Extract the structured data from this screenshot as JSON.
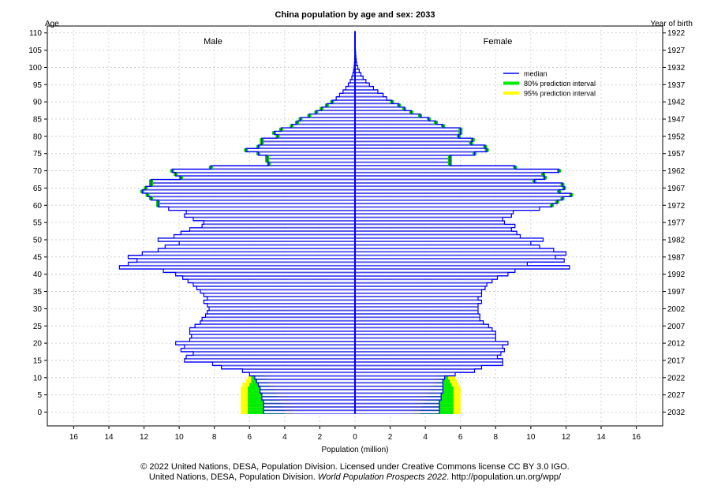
{
  "chart_data": {
    "type": "bar",
    "title": "China population by age and sex: 2033",
    "xlabel": "Population (million)",
    "ylabel_left": "Age",
    "ylabel_right": "Year of birth",
    "male_label": "Male",
    "female_label": "Female",
    "xlim": [
      -17.5,
      17.5
    ],
    "xticks": [
      -16,
      -14,
      -12,
      -10,
      -8,
      -6,
      -4,
      -2,
      0,
      2,
      4,
      6,
      8,
      10,
      12,
      14,
      16
    ],
    "xtick_labels": [
      "16",
      "14",
      "12",
      "10",
      "8",
      "6",
      "4",
      "2",
      "0",
      "2",
      "4",
      "6",
      "8",
      "10",
      "12",
      "14",
      "16"
    ],
    "ylim": [
      -4,
      112
    ],
    "age_ticks": [
      0,
      5,
      10,
      15,
      20,
      25,
      30,
      35,
      40,
      45,
      50,
      55,
      60,
      65,
      70,
      75,
      80,
      85,
      90,
      95,
      100,
      105,
      110
    ],
    "birth_year_labels": [
      "2032",
      "2027",
      "2022",
      "2017",
      "2012",
      "2007",
      "2002",
      "1997",
      "1992",
      "1987",
      "1982",
      "1977",
      "1972",
      "1967",
      "1962",
      "1957",
      "1952",
      "1947",
      "1942",
      "1937",
      "1932",
      "1927",
      "1922"
    ],
    "grid": true,
    "legend_position": "upper-right",
    "legend": [
      {
        "label": "median",
        "color": "#0000ff"
      },
      {
        "label": "80% prediction interval",
        "color": "#00ee00"
      },
      {
        "label": "95% prediction interval",
        "color": "#ffff00"
      }
    ],
    "series": [
      {
        "name": "Male",
        "values": [
          5.2,
          5.2,
          5.2,
          5.2,
          5.3,
          5.3,
          5.4,
          5.4,
          5.5,
          5.6,
          5.7,
          6.0,
          6.4,
          7.6,
          8.1,
          9.7,
          9.6,
          9.2,
          9.9,
          9.7,
          10.2,
          9.4,
          9.3,
          9.4,
          9.4,
          9.1,
          8.8,
          8.7,
          8.5,
          8.4,
          8.3,
          8.4,
          8.6,
          8.4,
          8.6,
          8.8,
          9.0,
          9.2,
          9.5,
          9.8,
          10.2,
          10.9,
          13.4,
          12.9,
          12.4,
          12.9,
          12.1,
          11.2,
          10.8,
          10.0,
          11.2,
          10.3,
          9.9,
          9.4,
          8.7,
          8.6,
          9.2,
          9.7,
          9.6,
          10.6,
          11.2,
          11.2,
          11.6,
          11.8,
          12.1,
          11.9,
          11.6,
          11.6,
          9.9,
          10.2,
          10.4,
          8.2,
          4.9,
          5.0,
          5.0,
          5.5,
          6.2,
          5.5,
          5.3,
          5.3,
          4.4,
          4.6,
          4.2,
          3.6,
          3.3,
          3.1,
          2.6,
          2.2,
          1.9,
          1.6,
          1.3,
          1.07,
          0.88,
          0.68,
          0.52,
          0.38,
          0.27,
          0.18,
          0.12,
          0.08,
          0.05,
          0.03,
          0.02,
          0.015,
          0.01,
          0.008,
          0.006,
          0.004,
          0.003,
          0.002,
          0.001
        ]
      },
      {
        "name": "Female",
        "values": [
          4.8,
          4.8,
          4.8,
          4.8,
          4.9,
          4.9,
          5.0,
          5.0,
          5.0,
          5.0,
          5.1,
          5.7,
          6.8,
          7.2,
          8.4,
          8.4,
          8.1,
          8.3,
          8.5,
          8.4,
          8.7,
          8.0,
          8.0,
          8.0,
          7.8,
          7.6,
          7.3,
          7.1,
          7.1,
          7.0,
          7.0,
          7.0,
          7.2,
          7.0,
          7.2,
          7.2,
          7.4,
          7.5,
          7.8,
          8.1,
          8.7,
          9.1,
          12.2,
          9.8,
          11.9,
          11.4,
          12.0,
          11.3,
          10.5,
          10.0,
          10.7,
          9.4,
          9.2,
          8.9,
          9.1,
          8.5,
          8.4,
          8.9,
          9.0,
          10.5,
          11.2,
          11.5,
          11.8,
          12.3,
          11.6,
          11.9,
          11.8,
          10.2,
          10.8,
          10.7,
          11.6,
          9.1,
          5.4,
          5.4,
          5.4,
          6.8,
          7.5,
          7.4,
          6.6,
          6.7,
          5.9,
          6.0,
          6.0,
          5.0,
          4.6,
          4.2,
          3.7,
          3.2,
          2.8,
          2.5,
          2.1,
          1.8,
          1.6,
          1.3,
          1.05,
          0.82,
          0.62,
          0.46,
          0.34,
          0.24,
          0.16,
          0.1,
          0.07,
          0.05,
          0.035,
          0.025,
          0.018,
          0.012,
          0.008,
          0.005,
          0.003
        ]
      }
    ],
    "intervals_ages_0_10": {
      "male_lo80": [
        4.0,
        4.0,
        4.1,
        4.2,
        4.3,
        4.4,
        4.5,
        4.6,
        4.8,
        5.0,
        5.2
      ],
      "male_hi80": [
        6.1,
        6.1,
        6.1,
        6.1,
        6.1,
        6.1,
        6.1,
        6.1,
        6.0,
        5.9,
        5.9
      ],
      "male_lo95": [
        3.5,
        3.5,
        3.6,
        3.7,
        3.8,
        4.0,
        4.1,
        4.3,
        4.5,
        4.8,
        5.1
      ],
      "male_hi95": [
        6.5,
        6.5,
        6.5,
        6.5,
        6.5,
        6.5,
        6.5,
        6.5,
        6.4,
        6.2,
        6.1
      ],
      "female_lo80": [
        3.7,
        3.7,
        3.8,
        3.9,
        4.0,
        4.1,
        4.2,
        4.3,
        4.5,
        4.6,
        4.8
      ],
      "female_hi80": [
        5.6,
        5.6,
        5.6,
        5.6,
        5.6,
        5.6,
        5.6,
        5.6,
        5.5,
        5.4,
        5.3
      ],
      "female_lo95": [
        3.3,
        3.3,
        3.4,
        3.5,
        3.6,
        3.7,
        3.8,
        4.0,
        4.2,
        4.4,
        4.6
      ],
      "female_hi95": [
        6.0,
        6.0,
        6.0,
        6.0,
        6.0,
        6.0,
        6.0,
        6.0,
        5.9,
        5.8,
        5.7
      ]
    }
  },
  "footer": {
    "line1": "© 2022 United Nations, DESA, Population Division. Licensed under Creative Commons license CC BY 3.0 IGO.",
    "line2_before": "United Nations, DESA, Population Division. ",
    "line2_italic": "World Population Prospects 2022",
    "line2_after": ". http://population.un.org/wpp/"
  }
}
